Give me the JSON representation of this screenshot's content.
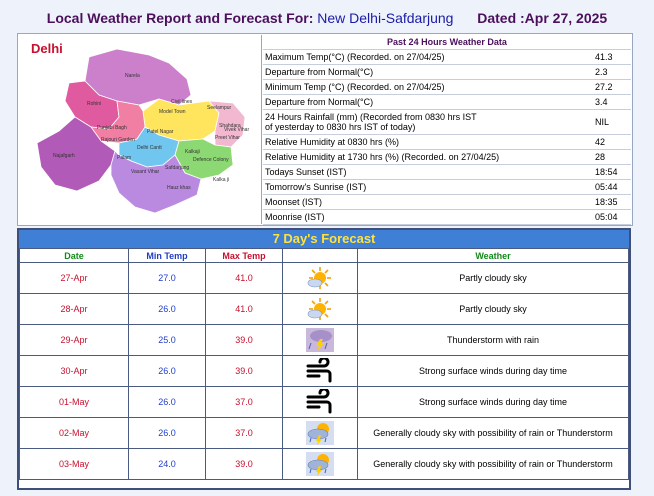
{
  "header": {
    "title_prefix": "Local Weather Report and Forecast For:",
    "location": "New Delhi-Safdarjung",
    "dated": "Dated :Apr 27, 2025"
  },
  "map": {
    "title": "Delhi",
    "districts": [
      "Narela",
      "Rohini",
      "Civil lines",
      "Model Town",
      "Seelampur",
      "Shahdara",
      "Preet Vihar",
      "Vivek Vihar",
      "Punjabi Bagh",
      "Rajouri Garden",
      "Patel Nagar",
      "Delhi Cantt",
      "Kalkaji",
      "Najafgarh",
      "Palam",
      "Vasant Vihar",
      "Safdarjung",
      "Defence Colony",
      "Hauz khas",
      "Kalka ji"
    ],
    "colors": {
      "north": "#cc80cc",
      "northwest": "#e05aa0",
      "west": "#f07fa3",
      "southwest": "#b25ab8",
      "central": "#ffe45e",
      "east": "#f2b8d0",
      "south": "#b98ae0",
      "southeast": "#8cd872",
      "newdelhi": "#70c6ef"
    }
  },
  "past24": {
    "heading": "Past 24 Hours Weather Data",
    "rows": [
      {
        "label": "Maximum Temp(°C) (Recorded. on 27/04/25)",
        "value": "41.3"
      },
      {
        "label": "Departure from Normal(°C)",
        "value": "2.3"
      },
      {
        "label": "Minimum Temp (°C) (Recorded. on 27/04/25)",
        "value": "27.2"
      },
      {
        "label": "Departure from Normal(°C)",
        "value": "3.4"
      },
      {
        "label": "24 Hours Rainfall (mm) (Recorded from 0830 hrs IST",
        "label2": "of yesterday to 0830 hrs IST of today)",
        "value": "NIL"
      },
      {
        "label": "Relative Humidity at 0830 hrs (%)",
        "value": "42"
      },
      {
        "label": "Relative Humidity at 1730 hrs (%) (Recorded. on 27/04/25)",
        "value": "28"
      },
      {
        "label": "Todays Sunset (IST)",
        "value": "18:54"
      },
      {
        "label": "Tomorrow's Sunrise (IST)",
        "value": "05:44"
      },
      {
        "label": "Moonset (IST)",
        "value": "18:35"
      },
      {
        "label": "Moonrise (IST)",
        "value": "05:04"
      }
    ]
  },
  "forecast": {
    "title": "7 Day's Forecast",
    "columns": {
      "date": "Date",
      "min": "Min Temp",
      "max": "Max Temp",
      "weather": "Weather"
    },
    "rows": [
      {
        "date": "27-Apr",
        "min": "27.0",
        "max": "41.0",
        "icon": "partly-cloudy-icon",
        "weather": "Partly cloudy sky"
      },
      {
        "date": "28-Apr",
        "min": "26.0",
        "max": "41.0",
        "icon": "partly-cloudy-icon",
        "weather": "Partly cloudy sky"
      },
      {
        "date": "29-Apr",
        "min": "25.0",
        "max": "39.0",
        "icon": "thunderstorm-rain-icon",
        "weather": "Thunderstorm with rain"
      },
      {
        "date": "30-Apr",
        "min": "26.0",
        "max": "39.0",
        "icon": "strong-wind-icon",
        "weather": "Strong surface winds during day time"
      },
      {
        "date": "01-May",
        "min": "26.0",
        "max": "37.0",
        "icon": "strong-wind-icon",
        "weather": "Strong surface winds during day time"
      },
      {
        "date": "02-May",
        "min": "26.0",
        "max": "37.0",
        "icon": "cloudy-rain-thunder-icon",
        "weather": "Generally cloudy sky with possibility of rain or Thunderstorm"
      },
      {
        "date": "03-May",
        "min": "24.0",
        "max": "39.0",
        "icon": "cloudy-rain-thunder-icon",
        "weather": "Generally cloudy sky with possibility of rain or Thunderstorm"
      }
    ]
  }
}
